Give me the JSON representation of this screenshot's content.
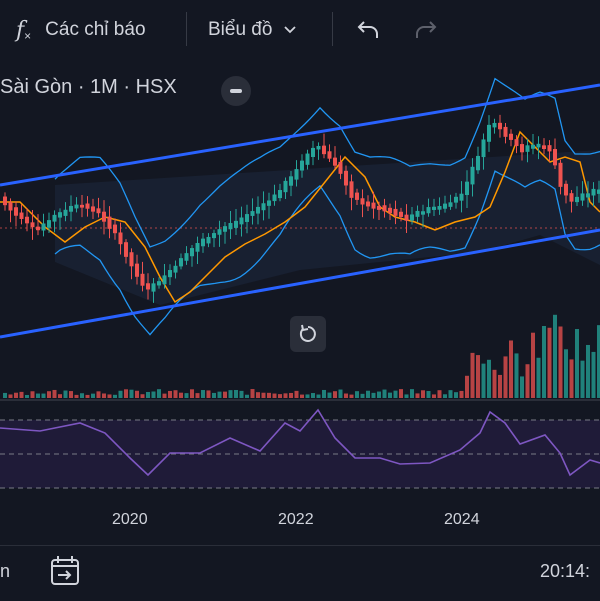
{
  "toolbar": {
    "indicators_label": "Các chỉ báo",
    "chart_type_label": "Biểu đồ",
    "icons": [
      "fx-icon",
      "chevron-down-icon",
      "undo-icon",
      "redo-icon"
    ]
  },
  "legend": {
    "symbol_text": "Sài Gòn · 1M · HSX"
  },
  "x_axis": {
    "labels": [
      "2020",
      "2022",
      "2024"
    ]
  },
  "bottom_bar": {
    "left_text": "n",
    "time_text": "20:14:"
  },
  "colors": {
    "background": "#131722",
    "up": "#26a69a",
    "down": "#ef5350",
    "channel": "#2962ff",
    "bollinger": "#2196f3",
    "ma": "#ff9800",
    "rsi": "#7e57c2"
  },
  "chart_data": {
    "type": "candlestick",
    "interval": "1M",
    "exchange": "HSX",
    "x_tick_labels": [
      "2020",
      "2022",
      "2024"
    ],
    "indicators": [
      "Bollinger Bands",
      "Volume",
      "RSI",
      "Trend channel"
    ],
    "grid": false
  }
}
